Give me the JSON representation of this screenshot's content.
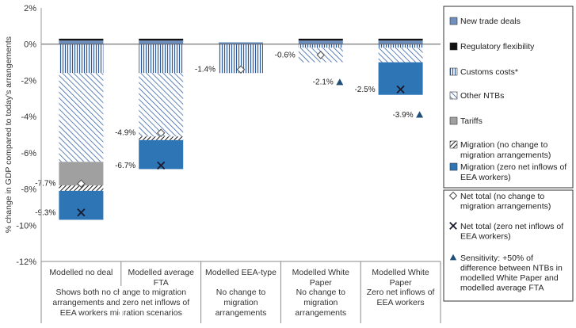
{
  "chart_data": {
    "type": "bar",
    "stacked": true,
    "title": "",
    "ylabel": "% change in GDP compared to today's arrangements",
    "ylim": [
      -12,
      2
    ],
    "yticks": [
      2,
      0,
      -2,
      -4,
      -6,
      -8,
      -10,
      -12
    ],
    "ytick_labels": [
      "2%",
      "0%",
      "-2%",
      "-4%",
      "-6%",
      "-8%",
      "-10%",
      "-12%"
    ],
    "categories": [
      {
        "label": [
          "Modelled no deal"
        ],
        "note": [
          "Shows both no change to migration",
          "arrangements and zero net inflows of",
          "EEA workers migration scenarios"
        ]
      },
      {
        "label": [
          "Modelled average",
          "FTA"
        ],
        "note": []
      },
      {
        "label": [
          "Modelled EEA-type"
        ],
        "note": [
          "No change to",
          "migration",
          "arrangements"
        ]
      },
      {
        "label": [
          "Modelled White",
          "Paper"
        ],
        "note": [
          "No change to",
          "migration",
          "arrangements"
        ]
      },
      {
        "label": [
          "Modelled White",
          "Paper"
        ],
        "note": [
          "Zero net inflows of",
          "EEA workers"
        ]
      }
    ],
    "series": [
      {
        "key": "new_trade",
        "name": "New trade deals",
        "color": "#6f8fbf",
        "values": [
          0.2,
          0.2,
          0.1,
          0.2,
          0.2
        ]
      },
      {
        "key": "regulatory",
        "name": "Regulatory flexibility",
        "color": "#111111",
        "values": [
          0.1,
          0.1,
          0.0,
          0.1,
          0.1
        ]
      },
      {
        "key": "customs",
        "name": "Customs costs*",
        "color": "#2c5aa0",
        "values": [
          -1.6,
          -1.6,
          -1.6,
          -0.2,
          -0.2
        ]
      },
      {
        "key": "other_ntbs",
        "name": "Other NTBs",
        "color": "#2c5aa0",
        "values": [
          -4.9,
          -3.5,
          0.0,
          -0.8,
          -0.8
        ]
      },
      {
        "key": "tariffs",
        "name": "Tariffs",
        "color": "#a0a0a0",
        "values": [
          -1.3,
          0.0,
          0.0,
          0.0,
          0.0
        ]
      },
      {
        "key": "mig_nochange",
        "name": "Migration (no change to migration arrangements)",
        "color": "#222222",
        "values": [
          -0.3,
          -0.2,
          0.0,
          0.0,
          0.0
        ]
      },
      {
        "key": "mig_zero",
        "name": "Migration (zero net inflows of EEA workers)",
        "color": "#2e75b6",
        "values": [
          -1.6,
          -1.6,
          0.0,
          0.0,
          -1.8
        ]
      }
    ],
    "net_total_no_change": {
      "name": "Net total (no change to migration arrangements)",
      "values": [
        -7.7,
        -4.9,
        -1.4,
        -0.6,
        null
      ],
      "labels": [
        "-7.7%",
        "-4.9%",
        "-1.4%",
        "-0.6%",
        ""
      ]
    },
    "net_total_zero_net": {
      "name": "Net total (zero net inflows of EEA workers)",
      "values": [
        -9.3,
        -6.7,
        null,
        null,
        -2.5
      ],
      "labels": [
        "-9.3%",
        "-6.7%",
        "",
        "",
        "-2.5%"
      ]
    },
    "sensitivity": {
      "name": "Sensitivity: +50% of difference between NTBs in modelled White Paper and modelled average FTA",
      "values": [
        null,
        null,
        null,
        -2.1,
        -3.9
      ],
      "labels": [
        "",
        "",
        "",
        "-2.1%",
        "-3.9%"
      ]
    },
    "legend_top": [
      {
        "key": "new_trade",
        "lines": [
          "New trade deals"
        ]
      },
      {
        "key": "regulatory",
        "lines": [
          "Regulatory flexibility"
        ]
      },
      {
        "key": "customs",
        "lines": [
          "Customs costs*"
        ]
      },
      {
        "key": "other_ntbs",
        "lines": [
          "Other NTBs"
        ]
      },
      {
        "key": "tariffs",
        "lines": [
          "Tariffs"
        ]
      },
      {
        "key": "mig_nochange",
        "lines": [
          "Migration (no change to",
          "migration arrangements)"
        ]
      },
      {
        "key": "mig_zero",
        "lines": [
          "Migration (zero net inflows of",
          "EEA workers)"
        ]
      }
    ],
    "legend_bottom": [
      {
        "key": "net_nochange",
        "lines": [
          "Net total (no change to",
          "migration arrangements)"
        ]
      },
      {
        "key": "net_zero",
        "lines": [
          "Net total (zero net inflows of",
          "EEA workers)"
        ]
      },
      {
        "key": "sensitivity",
        "lines": [
          "Sensitivity: +50% of",
          "difference between NTBs in",
          "modelled White Paper and",
          "modelled average FTA"
        ]
      }
    ],
    "legend_position": "right"
  }
}
